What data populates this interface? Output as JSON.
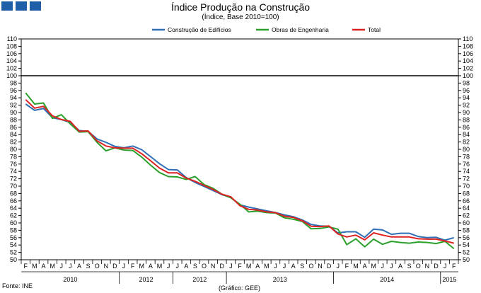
{
  "chart_data": {
    "type": "line",
    "title": "Índice Produção na Construção",
    "subtitle": "(Índice, Base 2010=100)",
    "ylim": [
      50,
      110
    ],
    "y_ticks": [
      50,
      52,
      54,
      56,
      58,
      60,
      62,
      64,
      66,
      68,
      70,
      72,
      74,
      76,
      78,
      80,
      82,
      84,
      86,
      88,
      90,
      92,
      94,
      96,
      98,
      100,
      102,
      104,
      106,
      108,
      110
    ],
    "reference_line": 100,
    "legend_position": "top",
    "grid": false,
    "x": [
      "F",
      "M",
      "A",
      "M",
      "J",
      "J",
      "A",
      "S",
      "O",
      "N",
      "D",
      "J",
      "F",
      "M",
      "A",
      "M",
      "J",
      "J",
      "A",
      "S",
      "O",
      "N",
      "D",
      "J",
      "F",
      "M",
      "A",
      "M",
      "J",
      "J",
      "A",
      "S",
      "O",
      "N",
      "D",
      "J",
      "F",
      "M",
      "A",
      "M",
      "J",
      "J",
      "A",
      "S",
      "O",
      "N",
      "D",
      "J",
      "F"
    ],
    "year_labels": [
      {
        "label": "2010",
        "start": 0,
        "end": 10
      },
      {
        "label": "2012",
        "start": 11,
        "end": 16
      },
      {
        "label": "2012",
        "start": 17,
        "end": 22
      },
      {
        "label": "2013",
        "start": 23,
        "end": 34
      },
      {
        "label": "2014",
        "start": 35,
        "end": 46
      },
      {
        "label": "2015",
        "start": 47,
        "end": 48
      }
    ],
    "series": [
      {
        "name": "Construção de Edifícios",
        "color": "#2f6fb5",
        "values": [
          92.3,
          90.6,
          91.1,
          88.6,
          88.1,
          87.3,
          85.1,
          84.9,
          82.8,
          81.9,
          80.8,
          80.4,
          80.9,
          79.9,
          78.0,
          76.1,
          74.5,
          74.4,
          72.3,
          71.0,
          69.9,
          68.8,
          67.7,
          66.9,
          64.9,
          64.3,
          63.8,
          63.3,
          62.8,
          62.2,
          61.7,
          60.8,
          59.6,
          59.2,
          59.1,
          57.3,
          57.6,
          57.6,
          56.1,
          58.3,
          58.1,
          56.9,
          57.2,
          57.2,
          56.3,
          56.0,
          56.1,
          55.3,
          56.0
        ]
      },
      {
        "name": "Obras de Engenharia",
        "color": "#2ca02c",
        "values": [
          95.3,
          92.3,
          92.6,
          88.4,
          89.4,
          86.9,
          84.7,
          84.8,
          81.9,
          79.6,
          80.4,
          79.8,
          79.7,
          77.9,
          75.7,
          73.7,
          72.6,
          72.5,
          71.8,
          72.6,
          70.4,
          69.4,
          67.8,
          66.8,
          65.1,
          63.0,
          63.2,
          62.8,
          62.7,
          61.4,
          61.0,
          60.4,
          58.4,
          58.5,
          58.9,
          58.3,
          54.1,
          55.7,
          53.5,
          55.6,
          54.2,
          55.0,
          54.7,
          54.5,
          54.8,
          54.7,
          54.4,
          55.0,
          53.0
        ]
      },
      {
        "name": "Total",
        "color": "#dd2222",
        "values": [
          93.5,
          91.2,
          91.7,
          89.1,
          88.1,
          87.6,
          84.9,
          85.0,
          82.3,
          80.9,
          80.4,
          80.3,
          80.3,
          78.8,
          76.9,
          74.9,
          73.6,
          73.6,
          72.2,
          71.3,
          70.2,
          69.1,
          67.8,
          67.1,
          64.7,
          63.7,
          63.5,
          63.0,
          62.8,
          61.8,
          61.5,
          60.6,
          59.1,
          59.0,
          59.2,
          57.0,
          56.2,
          56.7,
          55.4,
          57.3,
          56.7,
          56.2,
          56.2,
          56.2,
          55.7,
          55.6,
          55.6,
          55.1,
          54.5
        ]
      }
    ]
  },
  "footer": {
    "source": "Fonte: INE",
    "credit": "(Gráfico: GEE)"
  },
  "colors": {
    "logo": "#1f5fa8",
    "reference_line": "#000000"
  }
}
